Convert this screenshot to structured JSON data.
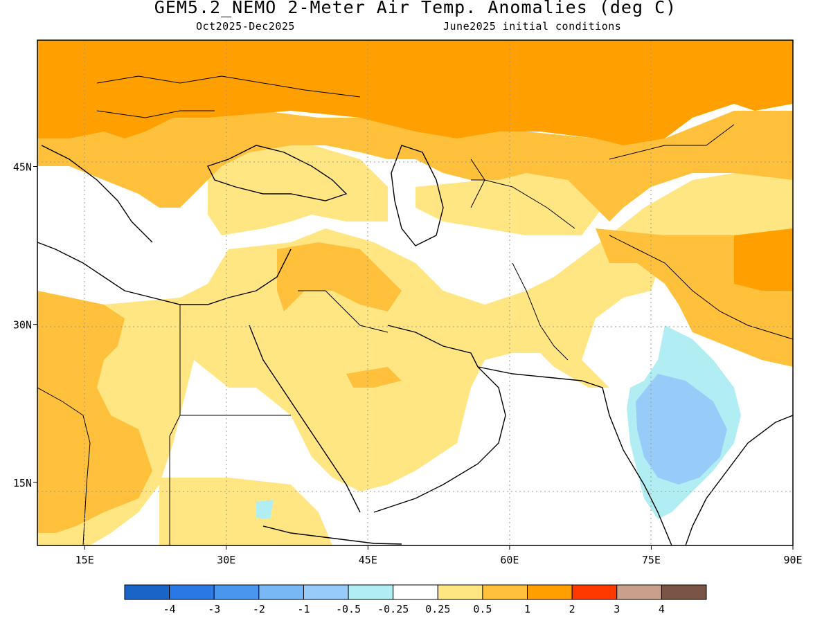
{
  "header": {
    "title": "GEM5.2_NEMO 2-Meter Air Temp. Anomalies (deg C)",
    "period": "Oct2025-Dec2025",
    "initial_conditions": "June2025 initial conditions"
  },
  "map": {
    "region": "Middle East / South Asia",
    "lon_range": [
      10,
      90
    ],
    "lat_range": [
      9,
      57
    ],
    "lon_ticks": [
      {
        "value": 15,
        "label": "15E"
      },
      {
        "value": 30,
        "label": "30E"
      },
      {
        "value": 45,
        "label": "45E"
      },
      {
        "value": 60,
        "label": "60E"
      },
      {
        "value": 75,
        "label": "75E"
      },
      {
        "value": 90,
        "label": "90E"
      }
    ],
    "lat_ticks": [
      {
        "value": 45,
        "label": "45N"
      },
      {
        "value": 30,
        "label": "30N"
      },
      {
        "value": 15,
        "label": "15N"
      }
    ],
    "gridlines": "dotted",
    "land_outline_color": "#000000"
  },
  "legend": {
    "boundaries": [
      "-4",
      "-3",
      "-2",
      "-1",
      "-0.5",
      "-0.25",
      "0.25",
      "0.5",
      "1",
      "2",
      "3",
      "4"
    ],
    "colors": [
      "#1a64c8",
      "#2a78e6",
      "#4a96ee",
      "#78b8f4",
      "#98ccf8",
      "#b0eef4",
      "#ffffff",
      "#ffe682",
      "#ffc03c",
      "#ffa000",
      "#ff3a00",
      "#c8a08c",
      "#7a5444"
    ]
  }
}
